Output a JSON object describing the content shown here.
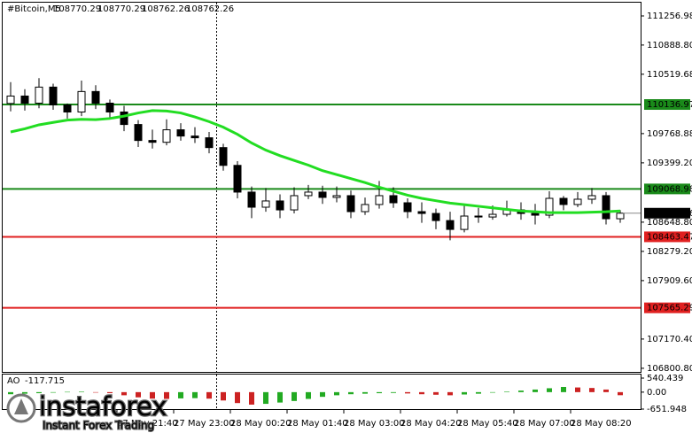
{
  "header": {
    "symbol": "#Bitcoin,M5",
    "ohlc": [
      108770.29,
      108770.29,
      108762.26,
      108762.26
    ]
  },
  "chart_data": {
    "type": "candlestick",
    "open": [
      110150,
      110244,
      110154,
      110357,
      110132,
      110042,
      110301,
      110154,
      110042,
      109884,
      109682,
      109659,
      109817,
      109738,
      109716,
      109592,
      109367,
      109029,
      108838,
      108917,
      108804,
      108984,
      109029,
      108962,
      108984,
      108782,
      108872,
      108984,
      108894,
      108782,
      108759,
      108669,
      108557,
      108726,
      108714,
      108748,
      108804,
      108759,
      108737,
      108950,
      108872,
      108939,
      108984,
      108692
    ],
    "high": [
      110420,
      110330,
      110470,
      110400,
      110150,
      110440,
      110380,
      110200,
      110120,
      109940,
      109820,
      109950,
      109900,
      109850,
      109790,
      109640,
      109420,
      109100,
      109080,
      109000,
      109090,
      109120,
      109110,
      109100,
      109050,
      108960,
      109170,
      109090,
      108950,
      108900,
      108820,
      108780,
      108860,
      108830,
      108860,
      108920,
      108900,
      108880,
      109040,
      108980,
      109030,
      109080,
      109030,
      108800
    ],
    "low": [
      110050,
      110060,
      110090,
      110070,
      109960,
      109990,
      110080,
      109960,
      109800,
      109600,
      109580,
      109620,
      109680,
      109650,
      109520,
      109300,
      108950,
      108700,
      108780,
      108700,
      108760,
      108940,
      108880,
      108900,
      108700,
      108740,
      108820,
      108830,
      108700,
      108640,
      108560,
      108420,
      108520,
      108640,
      108680,
      108720,
      108680,
      108620,
      108700,
      108800,
      108840,
      108880,
      108620,
      108640
    ],
    "close": [
      110244,
      110154,
      110357,
      110132,
      110042,
      110301,
      110154,
      110042,
      109884,
      109682,
      109659,
      109817,
      109738,
      109716,
      109592,
      109367,
      109029,
      108838,
      108917,
      108804,
      108984,
      109029,
      108962,
      108984,
      108782,
      108872,
      108984,
      108894,
      108782,
      108759,
      108669,
      108557,
      108726,
      108714,
      108748,
      108804,
      108759,
      108737,
      108950,
      108872,
      108939,
      108984,
      108692,
      108762.26
    ],
    "up_color": "#ffffff",
    "down_color": "#000000",
    "ma": {
      "color": "#22dd22",
      "values": [
        109790,
        109830,
        109880,
        109910,
        109940,
        109950,
        109945,
        109960,
        109990,
        110030,
        110060,
        110055,
        110030,
        109980,
        109920,
        109850,
        109760,
        109650,
        109560,
        109490,
        109430,
        109370,
        109300,
        109250,
        109200,
        109150,
        109090,
        109040,
        108990,
        108950,
        108920,
        108890,
        108870,
        108850,
        108830,
        108810,
        108790,
        108780,
        108770,
        108770,
        108770,
        108775,
        108780,
        108790
      ]
    },
    "ylim": [
      106755,
      111425
    ],
    "yticks": [
      111256.98,
      {
        "value": 110888.8,
        "label": "110888.80"
      },
      110519.68,
      109768.88,
      {
        "value": 109399.2,
        "label": "109399.20"
      },
      {
        "value": 108648.8,
        "label": "108648.80"
      },
      {
        "value": 108279.2,
        "label": "108279.20"
      },
      {
        "value": 107909.6,
        "label": "107909.60"
      },
      {
        "value": 107170.4,
        "label": "107170.40"
      },
      {
        "value": 106800.8,
        "label": "106800.80"
      }
    ],
    "levels": [
      {
        "value": 110136.97,
        "color": "#1a8a1a"
      },
      {
        "value": 109068.98,
        "color": "#1a8a1a"
      },
      {
        "value": 108463.47,
        "color": "#e02020"
      },
      {
        "value": 107565.29,
        "color": "#e02020"
      }
    ],
    "current_price": 108762.26,
    "xlim": [
      0,
      44
    ],
    "xticks": [
      {
        "value": 8,
        "label": "27 May 21:40"
      },
      {
        "value": 12,
        "label": "27 May 23:00"
      },
      {
        "value": 16,
        "label": "28 May 00:20"
      },
      {
        "value": 20,
        "label": "28 May 01:40"
      },
      {
        "value": 24,
        "label": "28 May 03:00"
      },
      {
        "value": 28,
        "label": "28 May 04:20"
      },
      {
        "value": 32,
        "label": "28 May 05:40"
      },
      {
        "value": 36,
        "label": "28 May 07:00"
      },
      {
        "value": 40,
        "label": "28 May 08:20"
      }
    ],
    "indicator": {
      "type": "bar",
      "name": "AO",
      "current": -117.715,
      "values": [
        -80,
        -60,
        -40,
        -20,
        10,
        20,
        -10,
        -40,
        -120,
        -200,
        -250,
        -260,
        -240,
        -230,
        -250,
        -320,
        -420,
        -480,
        -450,
        -400,
        -340,
        -260,
        -180,
        -120,
        -80,
        -60,
        -40,
        -30,
        -50,
        -80,
        -100,
        -120,
        -90,
        -60,
        -20,
        20,
        60,
        100,
        150,
        200,
        180,
        160,
        100,
        -117.715
      ],
      "up_color": "#22aa22",
      "down_color": "#cc2222",
      "ylim": [
        -651.948,
        540.439
      ],
      "yticks": [
        540.439,
        {
          "value": 0,
          "label": "0.00"
        },
        -651.948
      ]
    }
  },
  "watermark": {
    "brand": "instaforex",
    "tagline": "Instant Forex Trading"
  }
}
